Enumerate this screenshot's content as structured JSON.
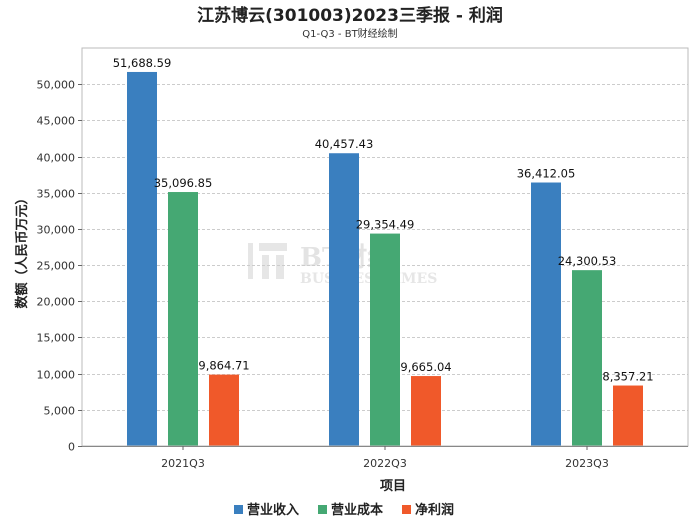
{
  "chart_data": {
    "type": "bar",
    "title": "江苏博云(301003)2023三季报 - 利润",
    "subtitle": "Q1-Q3 - BT财经绘制",
    "xlabel": "项目",
    "ylabel": "数额（人民币万元）",
    "categories": [
      "2021Q3",
      "2022Q3",
      "2023Q3"
    ],
    "ylim": [
      0,
      55000
    ],
    "yticks": [
      0,
      5000,
      10000,
      15000,
      20000,
      25000,
      30000,
      35000,
      40000,
      45000,
      50000
    ],
    "ytick_labels": [
      "0",
      "5,000",
      "10,000",
      "15,000",
      "20,000",
      "25,000",
      "30,000",
      "35,000",
      "40,000",
      "45,000",
      "50,000"
    ],
    "grid": true,
    "legend_position": "bottom-center",
    "series": [
      {
        "name": "营业收入",
        "color": "#3a7fbf",
        "values": [
          51688.59,
          40457.43,
          36412.05
        ],
        "labels": [
          "51,688.59",
          "40,457.43",
          "36,412.05"
        ]
      },
      {
        "name": "营业成本",
        "color": "#45a873",
        "values": [
          35096.85,
          29354.49,
          24300.53
        ],
        "labels": [
          "35,096.85",
          "29,354.49",
          "24,300.53"
        ]
      },
      {
        "name": "净利润",
        "color": "#f0592a",
        "values": [
          9864.71,
          9665.04,
          8357.21
        ],
        "labels": [
          "9,864.71",
          "9,665.04",
          "8,357.21"
        ]
      }
    ]
  },
  "watermark": {
    "main": "BT财经",
    "sub": "BUSINESSTIMES"
  }
}
